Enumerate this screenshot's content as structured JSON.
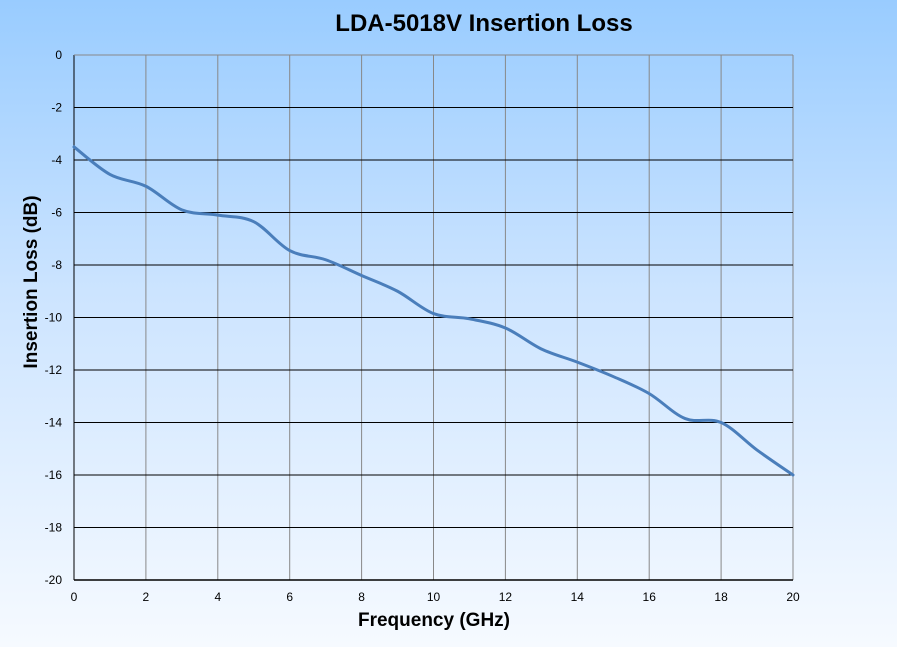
{
  "chart_data": {
    "type": "line",
    "title": "LDA-5018V Insertion Loss",
    "xlabel": "Frequency (GHz)",
    "ylabel": "Insertion Loss (dB)",
    "xlim": [
      0,
      20
    ],
    "ylim": [
      -20,
      0
    ],
    "xticks": [
      0,
      2,
      4,
      6,
      8,
      10,
      12,
      14,
      16,
      18,
      20
    ],
    "yticks": [
      0,
      -2,
      -4,
      -6,
      -8,
      -10,
      -12,
      -14,
      -16,
      -18,
      -20
    ],
    "grid": true,
    "legend": "none",
    "series": [
      {
        "name": "Insertion Loss",
        "color": "#4a7ebb",
        "x": [
          0,
          1,
          2,
          3,
          4,
          5,
          6,
          7,
          8,
          9,
          10,
          11,
          12,
          13,
          14,
          15,
          16,
          17,
          18,
          19,
          20
        ],
        "values": [
          -3.5,
          -4.55,
          -5.0,
          -5.9,
          -6.1,
          -6.35,
          -7.45,
          -7.8,
          -8.4,
          -9.0,
          -9.85,
          -10.05,
          -10.4,
          -11.2,
          -11.7,
          -12.25,
          -12.9,
          -13.85,
          -14.0,
          -15.05,
          -16.0
        ]
      }
    ]
  }
}
